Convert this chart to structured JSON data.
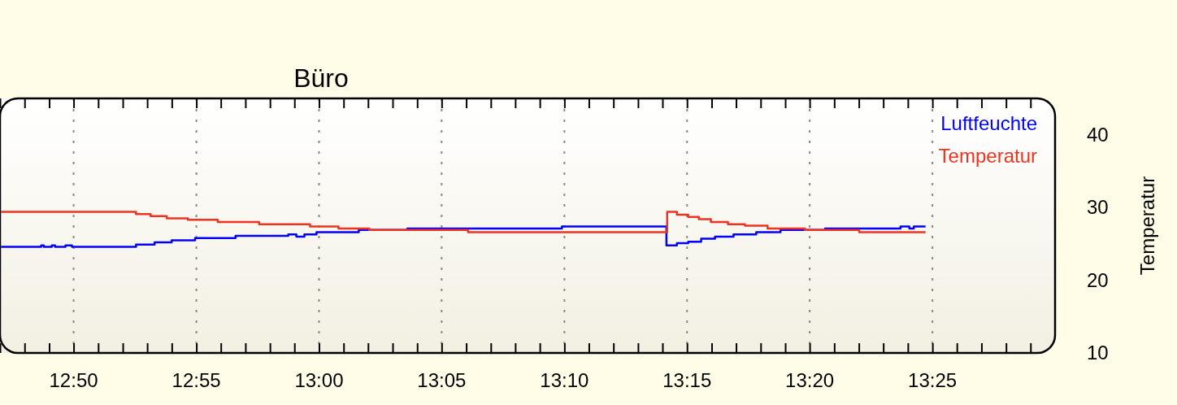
{
  "chart_data": {
    "type": "step",
    "title": "Büro",
    "ylabel": "Temperatur",
    "xlim": [
      12.7833,
      13.5
    ],
    "ylim": [
      10,
      45
    ],
    "yticks": [
      10,
      20,
      30,
      40
    ],
    "xticks": [
      {
        "value": 12.7833,
        "label": null
      },
      {
        "value": 12.8,
        "label": null
      },
      {
        "value": 12.8167,
        "label": null
      },
      {
        "value": 12.8333,
        "label": "12:50"
      },
      {
        "value": 12.85,
        "label": null
      },
      {
        "value": 12.8667,
        "label": null
      },
      {
        "value": 12.8833,
        "label": null
      },
      {
        "value": 12.9,
        "label": null
      },
      {
        "value": 12.9167,
        "label": "12:55"
      },
      {
        "value": 12.9333,
        "label": null
      },
      {
        "value": 12.95,
        "label": null
      },
      {
        "value": 12.9667,
        "label": null
      },
      {
        "value": 12.9833,
        "label": null
      },
      {
        "value": 13,
        "label": "13:00"
      },
      {
        "value": 13.0167,
        "label": null
      },
      {
        "value": 13.0333,
        "label": null
      },
      {
        "value": 13.05,
        "label": null
      },
      {
        "value": 13.0667,
        "label": null
      },
      {
        "value": 13.0833,
        "label": "13:05"
      },
      {
        "value": 13.1,
        "label": null
      },
      {
        "value": 13.1167,
        "label": null
      },
      {
        "value": 13.1333,
        "label": null
      },
      {
        "value": 13.15,
        "label": null
      },
      {
        "value": 13.1667,
        "label": "13:10"
      },
      {
        "value": 13.1833,
        "label": null
      },
      {
        "value": 13.2,
        "label": null
      },
      {
        "value": 13.2167,
        "label": null
      },
      {
        "value": 13.2333,
        "label": null
      },
      {
        "value": 13.25,
        "label": "13:15"
      },
      {
        "value": 13.2667,
        "label": null
      },
      {
        "value": 13.2833,
        "label": null
      },
      {
        "value": 13.3,
        "label": null
      },
      {
        "value": 13.3167,
        "label": null
      },
      {
        "value": 13.3333,
        "label": "13:20"
      },
      {
        "value": 13.35,
        "label": null
      },
      {
        "value": 13.3667,
        "label": null
      },
      {
        "value": 13.3833,
        "label": null
      },
      {
        "value": 13.4,
        "label": null
      },
      {
        "value": 13.4167,
        "label": "13:25"
      },
      {
        "value": 13.4333,
        "label": null
      },
      {
        "value": 13.45,
        "label": null
      },
      {
        "value": 13.4667,
        "label": null
      },
      {
        "value": 13.4833,
        "label": null
      }
    ],
    "grid": "x",
    "legend": "top right",
    "series": [
      {
        "name": "Luftfeuchte",
        "color": "#0000ff",
        "x": [
          12.784,
          12.8113,
          12.813,
          12.8185,
          12.8207,
          12.8278,
          12.8322,
          12.8757,
          12.8883,
          12.8999,
          12.9158,
          12.9433,
          12.9791,
          12.9846,
          12.9901,
          12.9983,
          13.027,
          13.06,
          13.165,
          13.236,
          13.2431,
          13.2508,
          13.2596,
          13.269,
          13.2816,
          13.297,
          13.3135,
          13.3438,
          13.395,
          13.401,
          13.404,
          13.412
        ],
        "values": [
          24.6,
          24.8,
          24.6,
          24.8,
          24.6,
          24.8,
          24.6,
          24.9,
          25.2,
          25.5,
          25.8,
          26.1,
          26.3,
          26.0,
          26.3,
          26.6,
          26.9,
          27.1,
          27.4,
          24.8,
          25.1,
          25.3,
          25.7,
          26.0,
          26.3,
          26.6,
          26.9,
          27.1,
          27.4,
          27.1,
          27.4,
          27.4
        ]
      },
      {
        "name": "Temperatur",
        "color": "#ee3322",
        "x": [
          12.784,
          12.8757,
          12.8856,
          12.8966,
          12.9109,
          12.9312,
          12.9593,
          12.9939,
          13.0132,
          13.0341,
          13.1012,
          13.2365,
          13.2431,
          13.2508,
          13.258,
          13.2662,
          13.2778,
          13.2893,
          13.3047,
          13.33,
          13.3669,
          13.412
        ],
        "values": [
          29.4,
          29.1,
          28.8,
          28.5,
          28.3,
          28.0,
          27.7,
          27.4,
          27.1,
          26.9,
          26.6,
          29.4,
          29.0,
          28.7,
          28.4,
          28.0,
          27.7,
          27.5,
          27.1,
          26.9,
          26.6,
          26.6
        ]
      }
    ]
  }
}
